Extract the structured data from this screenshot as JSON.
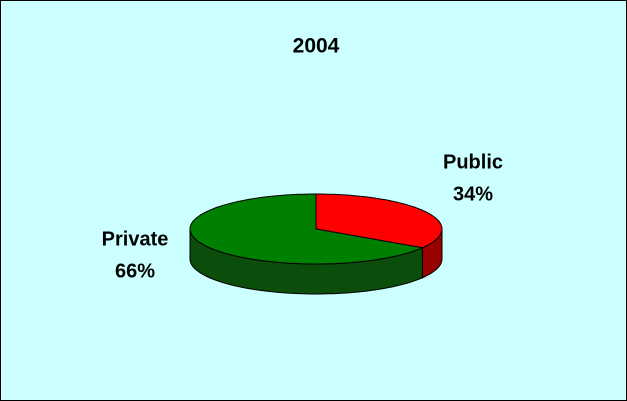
{
  "chart_data": {
    "type": "pie",
    "title": "2004",
    "categories": [
      "Public",
      "Private"
    ],
    "values": [
      34,
      66
    ],
    "value_labels": [
      "34%",
      "66%"
    ],
    "colors": [
      "#ff0000",
      "#008000"
    ],
    "side_colors": [
      "#990000",
      "#0b4d0b"
    ]
  }
}
